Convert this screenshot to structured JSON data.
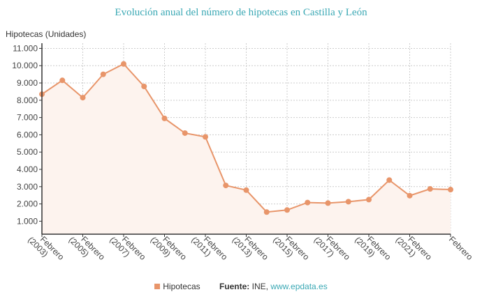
{
  "chart_data": {
    "type": "area",
    "title": "Evolución anual del número de hipotecas en Castilla y León",
    "ylabel": "Hipotecas (Unidades)",
    "xlabel": "",
    "ylim": [
      250,
      11300
    ],
    "yticks": [
      1000,
      2000,
      3000,
      4000,
      5000,
      6000,
      7000,
      8000,
      9000,
      10000,
      11000
    ],
    "ytick_labels": [
      "1.000",
      "2.000",
      "3.000",
      "4.000",
      "5.000",
      "6.000",
      "7.000",
      "8.000",
      "9.000",
      "10.000",
      "11.000"
    ],
    "x": [
      2003,
      2004,
      2005,
      2006,
      2007,
      2008,
      2009,
      2010,
      2011,
      2012,
      2013,
      2014,
      2015,
      2016,
      2017,
      2018,
      2019,
      2020,
      2021,
      2022,
      2023
    ],
    "xtick_positions": [
      2003,
      2005,
      2007,
      2009,
      2011,
      2013,
      2015,
      2017,
      2019,
      2021,
      2023
    ],
    "xtick_labels": [
      [
        "Febrero",
        "(2003)"
      ],
      [
        "Febrero",
        "(2005)"
      ],
      [
        "Febrero",
        "(2007)"
      ],
      [
        "Febrero",
        "(2009)"
      ],
      [
        "Febrero",
        "(2011)"
      ],
      [
        "Febrero",
        "(2013)"
      ],
      [
        "Febrero",
        "(2015)"
      ],
      [
        "Febrero",
        "(2017)"
      ],
      [
        "Febrero",
        "(2019)"
      ],
      [
        "Febrero",
        "(2021)"
      ],
      [
        "Febrero",
        ""
      ]
    ],
    "series": [
      {
        "name": "Hipotecas",
        "color": "#e8956a",
        "values": [
          8350,
          9150,
          8150,
          9500,
          10100,
          8800,
          6950,
          6100,
          5880,
          3070,
          2800,
          1530,
          1650,
          2080,
          2050,
          2130,
          2250,
          3380,
          2480,
          2870,
          2830
        ]
      }
    ],
    "grid": true,
    "legend": "bottom-center"
  },
  "source": {
    "label": "Fuente:",
    "text": "INE,",
    "link": "www.epdata.es"
  }
}
